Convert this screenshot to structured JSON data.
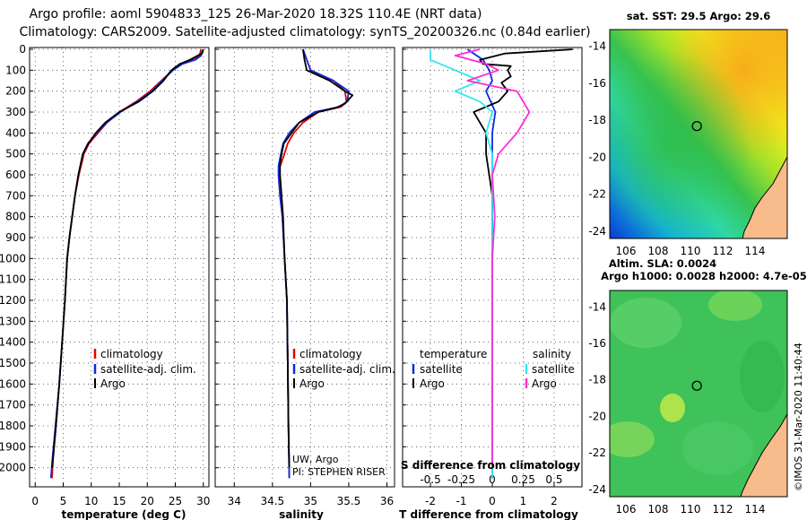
{
  "header": {
    "title_line1": "Argo profile: aoml 5904833_125 26-Mar-2020 18.32S 110.4E (NRT data)",
    "title_line2": "Climatology: CARS2009. Satellite-adjusted climatology: synTS_20200326.nc (0.84d earlier)"
  },
  "depth_ticks": [
    0,
    100,
    200,
    300,
    400,
    500,
    600,
    700,
    800,
    900,
    1000,
    1100,
    1200,
    1300,
    1400,
    1500,
    1600,
    1700,
    1800,
    1900,
    2000
  ],
  "colors": {
    "climatology": "#e60000",
    "satellite": "#0a2ce0",
    "argo": "#000000",
    "sat_salinity": "#37e6f0",
    "argo_salinity": "#ff2bd6",
    "land": "#f7bb8c"
  },
  "chart_data": [
    {
      "type": "line",
      "title": "",
      "xlabel": "temperature (deg C)",
      "ylabel": "",
      "xlim": [
        -1,
        31
      ],
      "ylim": [
        0,
        2100
      ],
      "xticks": [
        0,
        5,
        10,
        15,
        20,
        25,
        30
      ],
      "legend": [
        "climatology",
        "satellite-adj. clim.",
        "Argo"
      ],
      "series": [
        {
          "name": "climatology",
          "points": [
            [
              29.6,
              0
            ],
            [
              29.3,
              30
            ],
            [
              28.0,
              50
            ],
            [
              26.0,
              70
            ],
            [
              24.5,
              100
            ],
            [
              22.5,
              150
            ],
            [
              20.5,
              200
            ],
            [
              18.0,
              250
            ],
            [
              15.0,
              300
            ],
            [
              12.8,
              350
            ],
            [
              11.2,
              400
            ],
            [
              9.6,
              450
            ],
            [
              8.7,
              500
            ],
            [
              7.8,
              600
            ],
            [
              7.1,
              700
            ],
            [
              6.6,
              800
            ],
            [
              6.1,
              900
            ],
            [
              5.7,
              1000
            ],
            [
              5.3,
              1200
            ],
            [
              4.8,
              1400
            ],
            [
              4.3,
              1600
            ],
            [
              3.7,
              1800
            ],
            [
              3.2,
              1950
            ],
            [
              3.0,
              2050
            ]
          ]
        },
        {
          "name": "satellite-adj. clim.",
          "points": [
            [
              30.0,
              0
            ],
            [
              29.6,
              30
            ],
            [
              28.6,
              50
            ],
            [
              26.3,
              70
            ],
            [
              24.6,
              100
            ],
            [
              22.6,
              150
            ],
            [
              20.8,
              200
            ],
            [
              18.2,
              250
            ],
            [
              15.2,
              300
            ],
            [
              12.8,
              350
            ],
            [
              11.0,
              400
            ],
            [
              9.4,
              450
            ],
            [
              8.5,
              500
            ],
            [
              7.7,
              600
            ],
            [
              7.1,
              700
            ],
            [
              6.6,
              800
            ],
            [
              6.1,
              900
            ],
            [
              5.7,
              1000
            ],
            [
              5.3,
              1200
            ],
            [
              4.8,
              1400
            ],
            [
              4.3,
              1600
            ],
            [
              3.6,
              1800
            ],
            [
              3.1,
              1950
            ],
            [
              2.8,
              2050
            ]
          ]
        },
        {
          "name": "Argo",
          "points": [
            [
              30.0,
              0
            ],
            [
              29.7,
              20
            ],
            [
              27.6,
              50
            ],
            [
              25.8,
              70
            ],
            [
              24.3,
              100
            ],
            [
              22.9,
              150
            ],
            [
              21.0,
              200
            ],
            [
              18.5,
              250
            ],
            [
              15.0,
              300
            ],
            [
              12.5,
              350
            ],
            [
              10.8,
              400
            ],
            [
              9.5,
              450
            ],
            [
              8.5,
              500
            ],
            [
              7.7,
              600
            ],
            [
              7.1,
              700
            ],
            [
              6.6,
              800
            ],
            [
              6.1,
              900
            ],
            [
              5.7,
              1000
            ],
            [
              5.3,
              1200
            ],
            [
              4.8,
              1400
            ],
            [
              4.3,
              1600
            ],
            [
              3.7,
              1800
            ],
            [
              3.2,
              1950
            ],
            [
              3.0,
              2000
            ]
          ]
        }
      ]
    },
    {
      "type": "line",
      "title": "",
      "xlabel": "salinity",
      "ylabel": "",
      "xlim": [
        33.75,
        36.1
      ],
      "ylim": [
        0,
        2100
      ],
      "xticks": [
        34,
        34.5,
        35,
        35.5,
        36
      ],
      "legend": [
        "climatology",
        "satellite-adj. clim.",
        "Argo"
      ],
      "annotation": [
        "UW, Argo",
        "PI: STEPHEN RISER"
      ],
      "series": [
        {
          "name": "climatology",
          "points": [
            [
              34.9,
              0
            ],
            [
              34.95,
              50
            ],
            [
              35.0,
              100
            ],
            [
              35.3,
              150
            ],
            [
              35.45,
              200
            ],
            [
              35.47,
              250
            ],
            [
              35.4,
              275
            ],
            [
              35.1,
              300
            ],
            [
              34.9,
              350
            ],
            [
              34.78,
              400
            ],
            [
              34.7,
              450
            ],
            [
              34.64,
              520
            ],
            [
              34.6,
              560
            ],
            [
              34.58,
              600
            ],
            [
              34.6,
              700
            ],
            [
              34.63,
              800
            ],
            [
              34.66,
              1000
            ],
            [
              34.69,
              1200
            ],
            [
              34.7,
              1500
            ],
            [
              34.71,
              1800
            ],
            [
              34.72,
              2050
            ]
          ]
        },
        {
          "name": "satellite-adj. clim.",
          "points": [
            [
              34.9,
              0
            ],
            [
              34.95,
              50
            ],
            [
              35.0,
              100
            ],
            [
              35.3,
              150
            ],
            [
              35.5,
              200
            ],
            [
              35.48,
              250
            ],
            [
              35.37,
              275
            ],
            [
              35.05,
              300
            ],
            [
              34.85,
              350
            ],
            [
              34.72,
              400
            ],
            [
              34.64,
              450
            ],
            [
              34.6,
              520
            ],
            [
              34.58,
              560
            ],
            [
              34.58,
              600
            ],
            [
              34.6,
              700
            ],
            [
              34.63,
              800
            ],
            [
              34.66,
              1000
            ],
            [
              34.69,
              1200
            ],
            [
              34.7,
              1500
            ],
            [
              34.71,
              1800
            ],
            [
              34.72,
              2050
            ]
          ]
        },
        {
          "name": "Argo",
          "points": [
            [
              34.9,
              0
            ],
            [
              34.92,
              50
            ],
            [
              34.95,
              100
            ],
            [
              35.25,
              150
            ],
            [
              35.45,
              200
            ],
            [
              35.55,
              220
            ],
            [
              35.5,
              240
            ],
            [
              35.45,
              260
            ],
            [
              35.33,
              280
            ],
            [
              35.1,
              300
            ],
            [
              34.85,
              350
            ],
            [
              34.75,
              400
            ],
            [
              34.65,
              450
            ],
            [
              34.62,
              500
            ],
            [
              34.6,
              550
            ],
            [
              34.6,
              600
            ],
            [
              34.62,
              700
            ],
            [
              34.64,
              800
            ],
            [
              34.66,
              1000
            ],
            [
              34.69,
              1200
            ],
            [
              34.7,
              1500
            ],
            [
              34.71,
              1800
            ],
            [
              34.72,
              2000
            ]
          ]
        }
      ]
    },
    {
      "type": "line",
      "title": "",
      "xlabel": "T difference from climatology",
      "ylabel": "",
      "xlim": [
        -2.9,
        2.9
      ],
      "ylim": [
        0,
        2100
      ],
      "xticks": [
        -2,
        -1,
        0,
        1,
        2
      ],
      "top_xlabel": "S difference from climatology",
      "top_xticks": [
        -0.5,
        -0.25,
        0,
        0.25,
        0.5
      ],
      "legend_left_title": "temperature",
      "legend_right_title": "salinity",
      "legend": [
        "satellite",
        "Argo",
        "satellite",
        "Argo"
      ],
      "series": [
        {
          "name": "temperature satellite",
          "points": [
            [
              -0.8,
              0
            ],
            [
              -0.6,
              20
            ],
            [
              -0.3,
              50
            ],
            [
              -0.1,
              100
            ],
            [
              0,
              150
            ],
            [
              -0.2,
              200
            ],
            [
              0.1,
              300
            ],
            [
              0,
              400
            ],
            [
              0,
              600
            ],
            [
              0,
              1000
            ],
            [
              0,
              2050
            ]
          ]
        },
        {
          "name": "temperature Argo",
          "points": [
            [
              2.6,
              0
            ],
            [
              0.4,
              20
            ],
            [
              -0.4,
              50
            ],
            [
              -0.3,
              70
            ],
            [
              0.6,
              80
            ],
            [
              0.5,
              100
            ],
            [
              0.6,
              130
            ],
            [
              0.3,
              160
            ],
            [
              0.5,
              200
            ],
            [
              0.2,
              250
            ],
            [
              -0.6,
              300
            ],
            [
              -0.2,
              400
            ],
            [
              -0.2,
              500
            ],
            [
              -0.1,
              600
            ],
            [
              0,
              700
            ],
            [
              0,
              1000
            ],
            [
              0,
              2000
            ]
          ]
        },
        {
          "name": "salinity satellite",
          "points": [
            [
              -0.5,
              0
            ],
            [
              -0.5,
              50
            ],
            [
              -0.3,
              100
            ],
            [
              -0.1,
              150
            ],
            [
              -0.3,
              200
            ],
            [
              -0.1,
              250
            ],
            [
              0,
              300
            ],
            [
              -0.05,
              400
            ],
            [
              0,
              500
            ],
            [
              0,
              700
            ],
            [
              0,
              1000
            ],
            [
              0,
              2050
            ]
          ]
        },
        {
          "name": "salinity Argo",
          "points": [
            [
              -0.1,
              0
            ],
            [
              -0.3,
              30
            ],
            [
              -0.05,
              70
            ],
            [
              0.05,
              100
            ],
            [
              -0.2,
              150
            ],
            [
              0.2,
              200
            ],
            [
              0.3,
              300
            ],
            [
              0.2,
              400
            ],
            [
              0.05,
              500
            ],
            [
              0,
              600
            ],
            [
              0.02,
              800
            ],
            [
              0,
              1000
            ],
            [
              0,
              2000
            ]
          ]
        }
      ]
    },
    {
      "type": "heatmap",
      "title": "sat. SST: 29.5 Argo: 29.6",
      "xlim": [
        105,
        116
      ],
      "ylim": [
        -24.4,
        -13.1
      ],
      "xticks": [
        106,
        108,
        110,
        112,
        114
      ],
      "yticks": [
        -14,
        -16,
        -18,
        -20,
        -22,
        -24
      ],
      "marker": [
        110.4,
        -18.32
      ]
    },
    {
      "type": "heatmap",
      "title_line1": "Altim. SLA: 0.0024",
      "title_line2": "Argo h1000: 0.0028 h2000: 4.7e-05",
      "xlim": [
        105,
        116
      ],
      "ylim": [
        -24.4,
        -13.1
      ],
      "xticks": [
        106,
        108,
        110,
        112,
        114
      ],
      "yticks": [
        -14,
        -16,
        -18,
        -20,
        -22,
        -24
      ],
      "marker": [
        110.4,
        -18.32
      ],
      "side_label": "©IMOS 31-Mar-2020 11:40:44"
    }
  ]
}
